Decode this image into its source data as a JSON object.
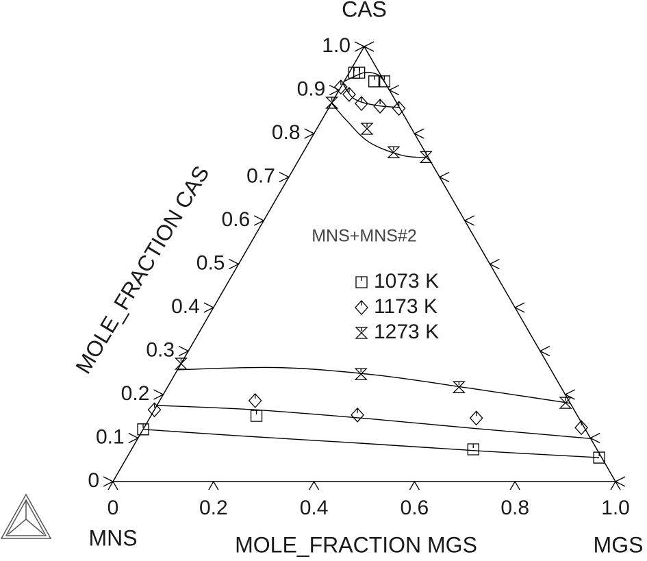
{
  "chart_data": {
    "type": "ternary",
    "corner_labels": {
      "top": "CAS",
      "left": "MNS",
      "right": "MGS"
    },
    "xlabel": "MOLE_FRACTION MGS",
    "ylabel": "MOLE_FRACTION CAS",
    "annotation": "MNS+MNS#2",
    "xlim": [
      0,
      1
    ],
    "ylim": [
      0,
      1
    ],
    "xticks": [
      0,
      0.2,
      0.4,
      0.6,
      0.8,
      {
        "value": 1,
        "label": "1.0"
      }
    ],
    "yticks": [
      0,
      0.1,
      0.2,
      0.3,
      0.4,
      0.5,
      0.6,
      0.7,
      0.8,
      0.9,
      {
        "value": 1,
        "label": "1.0"
      }
    ],
    "series": [
      {
        "name": "1073 K",
        "marker": "square",
        "color": "#000000",
        "x": [
          0,
          0.21,
          0.68,
          0.94,
          0.01,
          0.02,
          0.06,
          0.08
        ],
        "values": [
          0.12,
          0.151,
          0.074,
          0.055,
          0.94,
          0.94,
          0.92,
          0.92
        ],
        "curves": [
          {
            "x": [
              0,
              0.2,
              0.45,
              0.7,
              0.94
            ],
            "y": [
              0.12,
              0.105,
              0.088,
              0.07,
              0.055
            ]
          },
          {
            "x": [
              0,
              0.03,
              0.06,
              0.085
            ],
            "y": [
              0.92,
              0.94,
              0.935,
              0.915
            ]
          }
        ]
      },
      {
        "name": "1173 K",
        "marker": "diamond",
        "color": "#000000",
        "x": [
          0,
          0.19,
          0.41,
          0.65,
          0.87,
          0,
          0.025,
          0.06,
          0.1,
          0.14
        ],
        "values": [
          0.165,
          0.186,
          0.153,
          0.146,
          0.124,
          0.907,
          0.89,
          0.869,
          0.863,
          0.858
        ],
        "curves": [
          {
            "x": [
              0,
              0.2,
              0.42,
              0.65,
              0.9
            ],
            "y": [
              0.175,
              0.165,
              0.146,
              0.123,
              0.099
            ]
          },
          {
            "x": [
              0,
              0.04,
              0.09,
              0.14
            ],
            "y": [
              0.915,
              0.88,
              0.865,
              0.86
            ]
          }
        ]
      },
      {
        "name": "1273 K",
        "marker": "hourglass",
        "color": "#000000",
        "x": [
          0,
          0.37,
          0.58,
          0.81,
          0,
          0.1,
          0.18,
          0.25
        ],
        "values": [
          0.271,
          0.247,
          0.217,
          0.181,
          0.871,
          0.811,
          0.757,
          0.746
        ],
        "curves": [
          {
            "x": [
              0,
              0.2,
              0.4,
              0.6,
              0.82
            ],
            "y": [
              0.257,
              0.262,
              0.245,
              0.215,
              0.18
            ]
          },
          {
            "x": [
              0,
              0.05,
              0.12,
              0.2,
              0.25
            ],
            "y": [
              0.87,
              0.83,
              0.78,
              0.75,
              0.745
            ]
          }
        ]
      }
    ]
  }
}
